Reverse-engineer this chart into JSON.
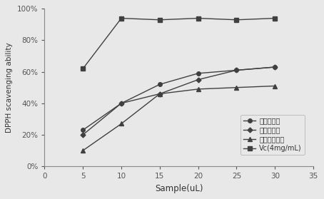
{
  "x": [
    5,
    10,
    15,
    20,
    25,
    30
  ],
  "fruit_ferment": [
    0.23,
    0.4,
    0.52,
    0.59,
    0.61,
    0.63
  ],
  "flower_ferment": [
    0.2,
    0.4,
    0.46,
    0.55,
    0.61,
    0.63
  ],
  "leaf_ferment": [
    0.1,
    0.27,
    0.46,
    0.49,
    0.5,
    0.51
  ],
  "vc": [
    0.62,
    0.94,
    0.93,
    0.94,
    0.93,
    0.94
  ],
  "legend_labels": [
    "柘树果酵素",
    "柘树花酵素",
    "柘树叶子酵素",
    "Vc(4mg/mL)"
  ],
  "xlabel": "Sample(uL)",
  "ylabel": "DPPH scavenging ability",
  "xlim": [
    0,
    35
  ],
  "ylim": [
    0,
    1.0
  ],
  "yticks": [
    0.0,
    0.2,
    0.4,
    0.6,
    0.8,
    1.0
  ],
  "ytick_labels": [
    "0%",
    "20%",
    "40%",
    "60%",
    "80%",
    "100%"
  ],
  "xticks": [
    0,
    5,
    10,
    15,
    20,
    25,
    30,
    35
  ],
  "line_color": "#404040",
  "bg_color": "#e8e8e8"
}
